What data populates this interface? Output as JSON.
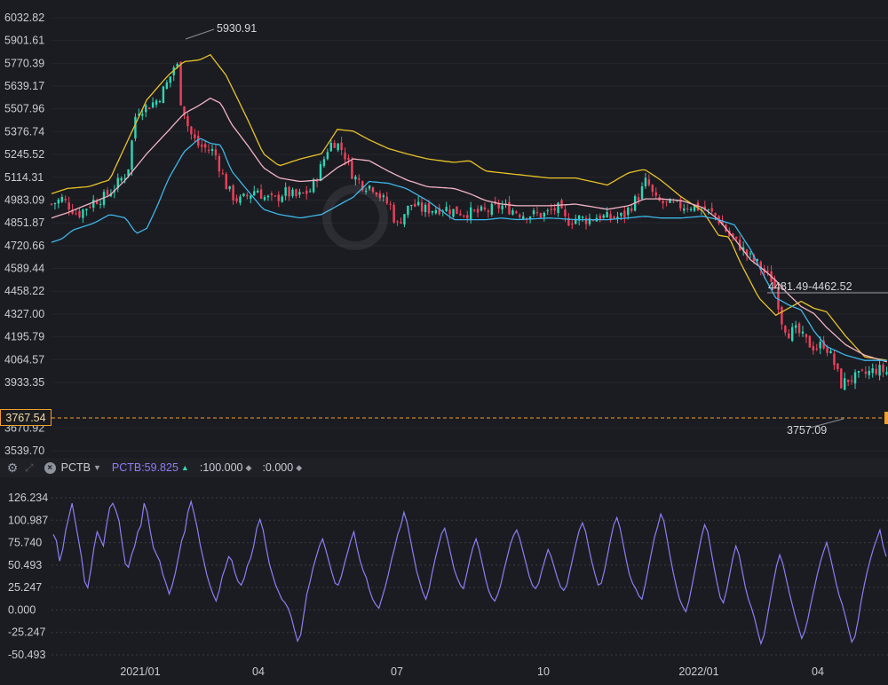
{
  "chart_data": [
    {
      "type": "candlestick",
      "title": "",
      "overlays": [
        "Bollinger upper (yellow)",
        "Bollinger middle (pink)",
        "Bollinger lower (blue)"
      ],
      "ylim": [
        3539.7,
        6032.82
      ],
      "y_ticks": [
        "6032.82",
        "5901.61",
        "5770.39",
        "5639.17",
        "5507.96",
        "5376.74",
        "5245.52",
        "5114.31",
        "4983.09",
        "4851.87",
        "4720.66",
        "4589.44",
        "4458.22",
        "4327.00",
        "4195.79",
        "4064.57",
        "3933.35",
        "3670.92",
        "3539.70"
      ],
      "x_ticks": [
        "2021/01",
        "04",
        "07",
        "10",
        "2022/01",
        "04"
      ],
      "annotations": {
        "high_label": "5930.91",
        "low_label": "3757.09",
        "range_label": "4481.49-4462.52",
        "current_price": "3767.54"
      },
      "close_path": [
        [
          0,
          4960
        ],
        [
          10,
          4990
        ],
        [
          25,
          4900
        ],
        [
          40,
          4980
        ],
        [
          50,
          5000
        ],
        [
          60,
          5060
        ],
        [
          72,
          5150
        ],
        [
          80,
          5500
        ],
        [
          90,
          5520
        ],
        [
          100,
          5560
        ],
        [
          108,
          5640
        ],
        [
          114,
          5720
        ],
        [
          118,
          5800
        ],
        [
          122,
          5560
        ],
        [
          126,
          5480
        ],
        [
          130,
          5380
        ],
        [
          138,
          5300
        ],
        [
          146,
          5280
        ],
        [
          154,
          5260
        ],
        [
          160,
          5150
        ],
        [
          166,
          5050
        ],
        [
          172,
          5000
        ],
        [
          178,
          4980
        ],
        [
          186,
          5010
        ],
        [
          194,
          5050
        ],
        [
          200,
          5000
        ],
        [
          210,
          4980
        ],
        [
          220,
          5030
        ],
        [
          232,
          5000
        ],
        [
          245,
          5040
        ],
        [
          255,
          5180
        ],
        [
          262,
          5300
        ],
        [
          268,
          5320
        ],
        [
          276,
          5260
        ],
        [
          285,
          5120
        ],
        [
          295,
          5070
        ],
        [
          305,
          5060
        ],
        [
          312,
          4990
        ],
        [
          320,
          4950
        ],
        [
          326,
          4830
        ],
        [
          332,
          4900
        ],
        [
          340,
          4960
        ],
        [
          350,
          4930
        ],
        [
          360,
          4930
        ],
        [
          370,
          4940
        ],
        [
          380,
          4920
        ],
        [
          392,
          4910
        ],
        [
          402,
          4910
        ],
        [
          412,
          4920
        ],
        [
          424,
          4950
        ],
        [
          434,
          4930
        ],
        [
          446,
          4900
        ],
        [
          458,
          4900
        ],
        [
          466,
          4900
        ],
        [
          478,
          4940
        ],
        [
          486,
          4860
        ],
        [
          496,
          4880
        ],
        [
          506,
          4870
        ],
        [
          516,
          4890
        ],
        [
          526,
          4880
        ],
        [
          540,
          4890
        ],
        [
          556,
          5020
        ],
        [
          562,
          5100
        ],
        [
          570,
          4980
        ],
        [
          580,
          4960
        ],
        [
          592,
          4950
        ],
        [
          605,
          4950
        ],
        [
          616,
          4930
        ],
        [
          628,
          4890
        ],
        [
          640,
          4780
        ],
        [
          650,
          4720
        ],
        [
          658,
          4660
        ],
        [
          666,
          4620
        ],
        [
          674,
          4560
        ],
        [
          680,
          4530
        ],
        [
          684,
          4460
        ],
        [
          690,
          4280
        ],
        [
          696,
          4220
        ],
        [
          704,
          4230
        ],
        [
          714,
          4160
        ],
        [
          722,
          4130
        ],
        [
          730,
          4160
        ],
        [
          738,
          4060
        ],
        [
          746,
          3920
        ],
        [
          752,
          3950
        ],
        [
          760,
          3960
        ],
        [
          768,
          3980
        ],
        [
          780,
          4010
        ],
        [
          790,
          3990
        ]
      ],
      "upper_band_path": [
        [
          0,
          5020
        ],
        [
          15,
          5050
        ],
        [
          35,
          5060
        ],
        [
          55,
          5100
        ],
        [
          70,
          5300
        ],
        [
          90,
          5560
        ],
        [
          110,
          5700
        ],
        [
          125,
          5780
        ],
        [
          140,
          5790
        ],
        [
          150,
          5820
        ],
        [
          165,
          5700
        ],
        [
          185,
          5450
        ],
        [
          200,
          5250
        ],
        [
          215,
          5180
        ],
        [
          235,
          5220
        ],
        [
          255,
          5250
        ],
        [
          270,
          5390
        ],
        [
          285,
          5380
        ],
        [
          300,
          5330
        ],
        [
          318,
          5280
        ],
        [
          335,
          5250
        ],
        [
          355,
          5220
        ],
        [
          380,
          5200
        ],
        [
          395,
          5210
        ],
        [
          410,
          5150
        ],
        [
          425,
          5140
        ],
        [
          440,
          5130
        ],
        [
          470,
          5110
        ],
        [
          495,
          5110
        ],
        [
          525,
          5070
        ],
        [
          545,
          5140
        ],
        [
          560,
          5160
        ],
        [
          575,
          5100
        ],
        [
          595,
          5000
        ],
        [
          615,
          4920
        ],
        [
          630,
          4780
        ],
        [
          640,
          4770
        ],
        [
          650,
          4630
        ],
        [
          668,
          4420
        ],
        [
          684,
          4320
        ],
        [
          696,
          4360
        ],
        [
          708,
          4400
        ],
        [
          720,
          4360
        ],
        [
          732,
          4340
        ],
        [
          750,
          4200
        ],
        [
          768,
          4080
        ],
        [
          790,
          4060
        ]
      ],
      "middle_band_path": [
        [
          0,
          4880
        ],
        [
          15,
          4910
        ],
        [
          35,
          4960
        ],
        [
          55,
          5010
        ],
        [
          70,
          5100
        ],
        [
          90,
          5250
        ],
        [
          110,
          5380
        ],
        [
          125,
          5480
        ],
        [
          140,
          5530
        ],
        [
          150,
          5570
        ],
        [
          160,
          5540
        ],
        [
          170,
          5420
        ],
        [
          185,
          5300
        ],
        [
          200,
          5170
        ],
        [
          215,
          5110
        ],
        [
          235,
          5090
        ],
        [
          255,
          5100
        ],
        [
          270,
          5170
        ],
        [
          285,
          5220
        ],
        [
          300,
          5210
        ],
        [
          318,
          5150
        ],
        [
          335,
          5100
        ],
        [
          355,
          5060
        ],
        [
          380,
          5050
        ],
        [
          395,
          5020
        ],
        [
          410,
          4980
        ],
        [
          425,
          4960
        ],
        [
          440,
          4950
        ],
        [
          470,
          4950
        ],
        [
          495,
          4960
        ],
        [
          525,
          4930
        ],
        [
          545,
          4950
        ],
        [
          560,
          4990
        ],
        [
          575,
          4990
        ],
        [
          595,
          4980
        ],
        [
          615,
          4940
        ],
        [
          630,
          4870
        ],
        [
          645,
          4760
        ],
        [
          660,
          4640
        ],
        [
          675,
          4570
        ],
        [
          684,
          4520
        ],
        [
          696,
          4440
        ],
        [
          708,
          4370
        ],
        [
          720,
          4330
        ],
        [
          732,
          4250
        ],
        [
          750,
          4150
        ],
        [
          768,
          4090
        ],
        [
          790,
          4050
        ]
      ],
      "lower_band_path": [
        [
          0,
          4740
        ],
        [
          10,
          4760
        ],
        [
          20,
          4810
        ],
        [
          40,
          4850
        ],
        [
          55,
          4900
        ],
        [
          70,
          4880
        ],
        [
          80,
          4790
        ],
        [
          90,
          4820
        ],
        [
          100,
          4950
        ],
        [
          110,
          5100
        ],
        [
          125,
          5260
        ],
        [
          140,
          5340
        ],
        [
          150,
          5310
        ],
        [
          160,
          5300
        ],
        [
          170,
          5150
        ],
        [
          185,
          5040
        ],
        [
          200,
          4930
        ],
        [
          215,
          4900
        ],
        [
          235,
          4880
        ],
        [
          255,
          4900
        ],
        [
          270,
          4950
        ],
        [
          285,
          5000
        ],
        [
          300,
          5090
        ],
        [
          318,
          5080
        ],
        [
          335,
          5050
        ],
        [
          355,
          4980
        ],
        [
          380,
          4870
        ],
        [
          395,
          4870
        ],
        [
          410,
          4870
        ],
        [
          425,
          4880
        ],
        [
          440,
          4870
        ],
        [
          470,
          4880
        ],
        [
          495,
          4870
        ],
        [
          525,
          4870
        ],
        [
          545,
          4880
        ],
        [
          560,
          4890
        ],
        [
          575,
          4880
        ],
        [
          595,
          4880
        ],
        [
          615,
          4890
        ],
        [
          630,
          4870
        ],
        [
          645,
          4840
        ],
        [
          660,
          4700
        ],
        [
          675,
          4520
        ],
        [
          684,
          4420
        ],
        [
          696,
          4380
        ],
        [
          708,
          4350
        ],
        [
          720,
          4230
        ],
        [
          732,
          4140
        ],
        [
          750,
          4090
        ],
        [
          768,
          4060
        ],
        [
          790,
          4060
        ]
      ]
    },
    {
      "type": "line",
      "series": [
        {
          "name": "PCTB",
          "color": "#8a7ff5"
        }
      ],
      "ylim": [
        -50.493,
        126.234
      ],
      "y_ticks": [
        "126.234",
        "100.987",
        "75.740",
        "50.493",
        "25.247",
        "0.000",
        "-25.247",
        "-50.493"
      ],
      "x_ticks": [
        "2021/01",
        "04",
        "07",
        "10",
        "2022/01",
        "04"
      ],
      "values": [
        85,
        78,
        55,
        68,
        90,
        105,
        120,
        100,
        80,
        60,
        32,
        25,
        45,
        70,
        88,
        80,
        72,
        95,
        115,
        120,
        112,
        100,
        75,
        52,
        48,
        62,
        72,
        88,
        95,
        120,
        110,
        88,
        70,
        62,
        55,
        40,
        30,
        18,
        28,
        42,
        60,
        78,
        88,
        110,
        122,
        108,
        92,
        72,
        56,
        40,
        28,
        18,
        10,
        22,
        38,
        48,
        60,
        56,
        42,
        32,
        28,
        36,
        50,
        58,
        72,
        92,
        102,
        90,
        70,
        52,
        40,
        28,
        20,
        12,
        8,
        2,
        -8,
        -22,
        -35,
        -28,
        -5,
        18,
        32,
        48,
        60,
        72,
        80,
        68,
        55,
        42,
        30,
        28,
        38,
        52,
        65,
        78,
        88,
        70,
        55,
        44,
        36,
        22,
        12,
        6,
        2,
        14,
        26,
        40,
        56,
        70,
        85,
        95,
        110,
        98,
        80,
        62,
        44,
        32,
        20,
        12,
        24,
        42,
        58,
        72,
        86,
        92,
        78,
        62,
        46,
        36,
        28,
        24,
        40,
        56,
        70,
        80,
        68,
        52,
        36,
        22,
        14,
        10,
        18,
        30,
        46,
        60,
        74,
        84,
        90,
        80,
        66,
        52,
        38,
        28,
        24,
        30,
        44,
        56,
        68,
        60,
        48,
        36,
        26,
        22,
        28,
        44,
        60,
        76,
        90,
        98,
        88,
        70,
        54,
        40,
        28,
        30,
        44,
        62,
        80,
        96,
        104,
        92,
        74,
        56,
        40,
        30,
        24,
        16,
        12,
        28,
        46,
        64,
        82,
        94,
        108,
        100,
        80,
        60,
        42,
        26,
        12,
        4,
        -2,
        10,
        28,
        46,
        64,
        82,
        96,
        88,
        68,
        48,
        30,
        14,
        8,
        22,
        40,
        58,
        72,
        62,
        44,
        26,
        12,
        2,
        -10,
        -25,
        -38,
        -28,
        -8,
        12,
        32,
        50,
        62,
        52,
        36,
        20,
        6,
        -8,
        -20,
        -32,
        -24,
        -10,
        8,
        24,
        40,
        54,
        66,
        76,
        62,
        46,
        30,
        16,
        6,
        -8,
        -22,
        -36,
        -30,
        -12,
        10,
        28,
        44,
        58,
        70,
        80,
        90,
        72,
        60
      ]
    }
  ],
  "toolbar": {
    "indicator_name": "PCTB",
    "indicator_value": "PCTB:59.825",
    "upper_value": ":100.000",
    "lower_value": ":0.000"
  },
  "colors": {
    "background": "#1b1c21",
    "bull": "#2fd6b6",
    "bear": "#f0415c",
    "upper_band": "#e8c229",
    "middle_band": "#f1b3c4",
    "lower_band": "#3eb5e8",
    "pctb": "#8a7ff5",
    "price_line": "#f3a02a"
  },
  "icons": {
    "settings": "gear-icon",
    "expand": "expand-icon",
    "close": "close-icon",
    "dropdown": "chevron-down-icon"
  }
}
